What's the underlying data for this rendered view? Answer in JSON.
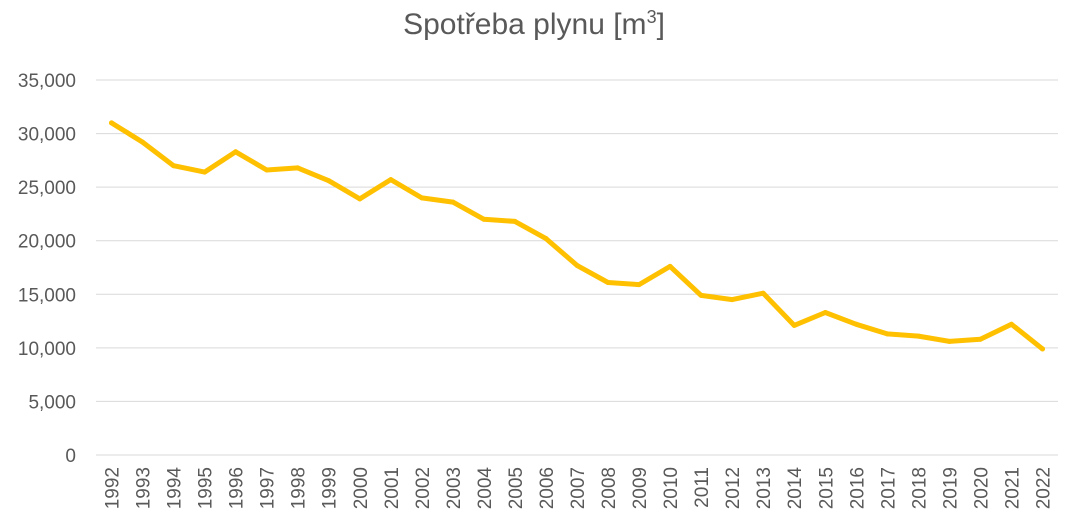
{
  "chart_data": {
    "type": "line",
    "title": "Spotřeba plynu [m",
    "title_superscript": "3",
    "title_suffix": "]",
    "x": [
      "1992",
      "1993",
      "1994",
      "1995",
      "1996",
      "1997",
      "1998",
      "1999",
      "2000",
      "2001",
      "2002",
      "2003",
      "2004",
      "2005",
      "2006",
      "2007",
      "2008",
      "2009",
      "2010",
      "2011",
      "2012",
      "2013",
      "2014",
      "2015",
      "2016",
      "2017",
      "2018",
      "2019",
      "2020",
      "2021",
      "2022"
    ],
    "series": [
      {
        "values": [
          31000,
          29200,
          27000,
          26400,
          28300,
          26600,
          26800,
          25600,
          23900,
          25700,
          24000,
          23600,
          22000,
          21800,
          20200,
          17700,
          16100,
          15900,
          17600,
          14900,
          14500,
          15100,
          12100,
          13300,
          12200,
          11300,
          11100,
          10600,
          10800,
          12200,
          9900
        ],
        "color": "#FFC000"
      }
    ],
    "ylim": [
      0,
      35000
    ],
    "yticks": [
      0,
      5000,
      10000,
      15000,
      20000,
      25000,
      30000,
      35000
    ],
    "ytick_labels": [
      "0",
      "5,000",
      "10,000",
      "15,000",
      "20,000",
      "25,000",
      "30,000",
      "35,000"
    ],
    "xlabel": "",
    "ylabel": "",
    "grid": true,
    "gridline_color": "#D9D9D9",
    "legend": "none"
  }
}
